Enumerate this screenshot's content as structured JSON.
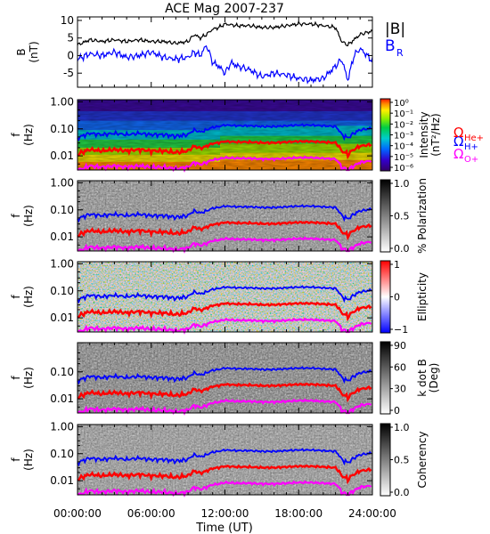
{
  "title": "ACE Mag 2007-237",
  "time_axis": {
    "ticks": [
      "00:00:00",
      "06:00:00",
      "12:00:00",
      "18:00:00",
      "24:00:00"
    ],
    "label": "Time (UT)",
    "range_hours": [
      0,
      24
    ]
  },
  "colors": {
    "B_total": "#000000",
    "B_R": "#0000ff",
    "H_plus": "#0000ff",
    "He_plus": "#ff0000",
    "O_plus": "#ff00ff"
  },
  "chart_data": [
    {
      "type": "line",
      "panel": "magnetic-field",
      "ylabel": "B",
      "yunit": "(nT)",
      "ylim": [
        -9,
        11
      ],
      "yticks": [
        "10",
        "5",
        "0",
        "-5"
      ],
      "ytick_values": [
        10,
        5,
        0,
        -5
      ],
      "legend": [
        "|B|",
        "B"
      ],
      "legend_subscript": "R",
      "series": [
        {
          "name": "|B|",
          "x": [
            0,
            1,
            2,
            3,
            4,
            5,
            6,
            7,
            8,
            9,
            9.5,
            10,
            10.5,
            11,
            11.5,
            12,
            13,
            14,
            15,
            16,
            17,
            18,
            19,
            20,
            21,
            21.5,
            22,
            22.5,
            23,
            24
          ],
          "values": [
            3,
            4.5,
            4,
            4.5,
            4,
            4.5,
            4,
            4,
            3.5,
            4,
            6,
            5,
            6,
            7.5,
            8,
            9,
            8.5,
            8.5,
            8,
            8,
            8.5,
            9,
            9,
            8.5,
            8,
            4,
            3,
            4.5,
            6,
            7
          ]
        },
        {
          "name": "B_R",
          "x": [
            0,
            1,
            2,
            3,
            4,
            5,
            6,
            7,
            8,
            9,
            9.5,
            10,
            10.5,
            11,
            11.5,
            12,
            12.5,
            13,
            14,
            15,
            16,
            17,
            18,
            19,
            20,
            21,
            21.5,
            22,
            22.5,
            23,
            24
          ],
          "values": [
            -1,
            0.5,
            0,
            1,
            -0.5,
            0,
            1,
            -0.5,
            -1,
            -0.5,
            1,
            0,
            3,
            -2,
            -3,
            -5,
            -2,
            -3,
            -4,
            -6,
            -5,
            -5.5,
            -6.5,
            -7,
            -6.5,
            -3,
            -1,
            -7,
            0,
            2,
            -1.5
          ]
        }
      ]
    },
    {
      "type": "heatmap",
      "panel": "intensity",
      "ylabel": "f",
      "yunit": "(Hz)",
      "yscale": "log",
      "ylim": [
        0.003,
        1.2
      ],
      "yticks": [
        "1.00",
        "0.10",
        "0.01"
      ],
      "ytick_values": [
        1,
        0.1,
        0.01
      ],
      "colorbar": {
        "label": "Intensity",
        "unit": "(nT²/Hz)",
        "scale": "log",
        "ticks": [
          "10⁰",
          "10⁻¹",
          "10⁻²",
          "10⁻³",
          "10⁻⁴",
          "10⁻⁵",
          "10⁻⁶"
        ],
        "palette": "rainbow"
      }
    },
    {
      "type": "heatmap",
      "panel": "polarization",
      "ylabel": "f",
      "yunit": "(Hz)",
      "yscale": "log",
      "yticks": [
        "1.00",
        "0.10",
        "0.01"
      ],
      "colorbar": {
        "label": "% Polarization",
        "ticks": [
          "1.0",
          "0.5",
          "0.0"
        ],
        "palette": "grayscale"
      }
    },
    {
      "type": "heatmap",
      "panel": "ellipticity",
      "ylabel": "f",
      "yunit": "(Hz)",
      "yscale": "log",
      "yticks": [
        "1.00",
        "0.10",
        "0.01"
      ],
      "colorbar": {
        "label": "Ellipticity",
        "ticks": [
          "1",
          "0",
          "−1"
        ],
        "palette": "blue-white-red"
      }
    },
    {
      "type": "heatmap",
      "panel": "k-dot-b",
      "ylabel": "f",
      "yunit": "(Hz)",
      "yscale": "log",
      "yticks": [
        "0.10",
        "0.01"
      ],
      "colorbar": {
        "label": "k dot B",
        "unit": "(Deg)",
        "ticks": [
          "90",
          "60",
          "30",
          "0"
        ],
        "palette": "grayscale"
      }
    },
    {
      "type": "heatmap",
      "panel": "coherency",
      "ylabel": "f",
      "yunit": "(Hz)",
      "yscale": "log",
      "yticks": [
        "1.00",
        "0.10",
        "0.01"
      ],
      "colorbar": {
        "label": "Coherency",
        "ticks": [
          "1.0",
          "0.5",
          "0.0"
        ],
        "palette": "grayscale"
      }
    }
  ],
  "gyrofrequency_legend": [
    {
      "symbol": "Ω",
      "subscript": "H+",
      "color": "#0000ff"
    },
    {
      "symbol": "Ω",
      "subscript": "He+",
      "color": "#ff0000"
    },
    {
      "symbol": "Ω",
      "subscript": "O+",
      "color": "#ff00ff"
    }
  ]
}
